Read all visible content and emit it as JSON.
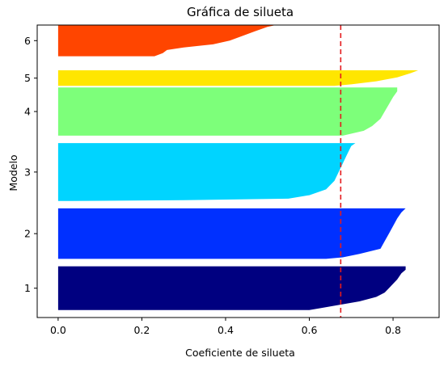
{
  "chart_data": {
    "type": "silhouette",
    "title": "Gráfica de silueta",
    "xlabel": "Coeficiente de silueta",
    "ylabel": "Modelo",
    "xlim": [
      -0.05,
      0.91
    ],
    "x_ticks": [
      0.0,
      0.2,
      0.4,
      0.6,
      0.8
    ],
    "x_tick_labels": [
      "0.0",
      "0.2",
      "0.4",
      "0.6",
      "0.8"
    ],
    "ylim": [
      0,
      336
    ],
    "average_silhouette": 0.675,
    "average_line_color": "#e41a1c",
    "clusters": [
      {
        "label": "1",
        "color": "#000080",
        "y_start": 10,
        "size": 59,
        "max": 0.83,
        "min": 0.6,
        "profile": [
          [
            0,
            0.83
          ],
          [
            0.08,
            0.83
          ],
          [
            0.16,
            0.82
          ],
          [
            0.3,
            0.81
          ],
          [
            0.4,
            0.8
          ],
          [
            0.5,
            0.79
          ],
          [
            0.6,
            0.78
          ],
          [
            0.7,
            0.76
          ],
          [
            0.8,
            0.72
          ],
          [
            0.9,
            0.66
          ],
          [
            1,
            0.6
          ]
        ]
      },
      {
        "label": "2",
        "color": "#0030ff",
        "y_start": 79,
        "size": 68,
        "max": 0.83,
        "min": 0.64,
        "profile": [
          [
            0,
            0.83
          ],
          [
            0.08,
            0.82
          ],
          [
            0.2,
            0.81
          ],
          [
            0.35,
            0.8
          ],
          [
            0.5,
            0.79
          ],
          [
            0.65,
            0.78
          ],
          [
            0.8,
            0.77
          ],
          [
            0.9,
            0.72
          ],
          [
            0.97,
            0.68
          ],
          [
            1,
            0.64
          ]
        ]
      },
      {
        "label": "3",
        "color": "#00d4ff",
        "y_start": 157,
        "size": 78,
        "max": 0.71,
        "min": 0.03,
        "profile": [
          [
            0,
            0.71
          ],
          [
            0.05,
            0.7
          ],
          [
            0.2,
            0.69
          ],
          [
            0.35,
            0.68
          ],
          [
            0.5,
            0.67
          ],
          [
            0.65,
            0.66
          ],
          [
            0.8,
            0.64
          ],
          [
            0.9,
            0.6
          ],
          [
            0.96,
            0.55
          ],
          [
            0.985,
            0.3
          ],
          [
            1,
            0.03
          ]
        ]
      },
      {
        "label": "4",
        "color": "#7dff7a",
        "y_start": 245,
        "size": 65,
        "max": 0.81,
        "min": 0.68,
        "profile": [
          [
            0,
            0.81
          ],
          [
            0.08,
            0.81
          ],
          [
            0.2,
            0.8
          ],
          [
            0.35,
            0.79
          ],
          [
            0.5,
            0.78
          ],
          [
            0.65,
            0.77
          ],
          [
            0.8,
            0.75
          ],
          [
            0.9,
            0.73
          ],
          [
            1,
            0.68
          ]
        ]
      },
      {
        "label": "5",
        "color": "#ffe600",
        "y_start": 312,
        "size": 21,
        "max": 0.86,
        "min": 0.66,
        "profile": [
          [
            0,
            0.86
          ],
          [
            0.2,
            0.84
          ],
          [
            0.45,
            0.81
          ],
          [
            0.7,
            0.76
          ],
          [
            0.9,
            0.7
          ],
          [
            1,
            0.66
          ]
        ]
      },
      {
        "label": "6",
        "color": "#ff4500",
        "y_start": 352,
        "size": 42,
        "max": 0.52,
        "min": 0.23,
        "profile": [
          [
            0,
            0.52
          ],
          [
            0.06,
            0.5
          ],
          [
            0.2,
            0.47
          ],
          [
            0.35,
            0.44
          ],
          [
            0.5,
            0.41
          ],
          [
            0.62,
            0.37
          ],
          [
            0.72,
            0.3
          ],
          [
            0.8,
            0.26
          ],
          [
            0.9,
            0.25
          ],
          [
            1,
            0.23
          ]
        ]
      }
    ]
  }
}
